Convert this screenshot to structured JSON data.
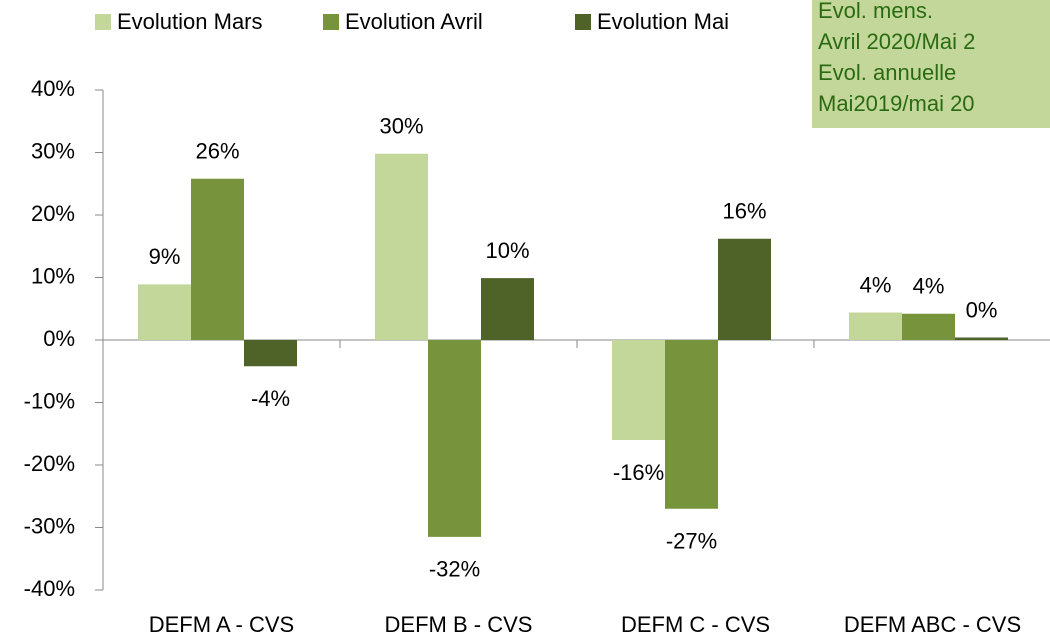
{
  "chart_data": {
    "type": "bar",
    "categories": [
      "DEFM A - CVS",
      "DEFM B - CVS",
      "DEFM C - CVS",
      "DEFM ABC - CVS"
    ],
    "series": [
      {
        "name": "Evolution Mars",
        "color": "#c4d79b",
        "values": [
          8.9,
          29.8,
          -16.0,
          4.4
        ],
        "value_labels": [
          "9%",
          "30%",
          "-16%",
          "4%"
        ]
      },
      {
        "name": "Evolution Avril",
        "color": "#77933c",
        "values": [
          25.8,
          -31.5,
          -27.0,
          4.2
        ],
        "value_labels": [
          "26%",
          "-32%",
          "-27%",
          "4%"
        ]
      },
      {
        "name": "Evolution Mai",
        "color": "#4f6228",
        "values": [
          -4.2,
          9.9,
          16.2,
          0.4
        ],
        "value_labels": [
          "-4%",
          "10%",
          "16%",
          "0%"
        ]
      }
    ],
    "ylim": [
      -40,
      40
    ],
    "yticks": [
      {
        "value": -40,
        "label": "-40%"
      },
      {
        "value": -30,
        "label": "-30%"
      },
      {
        "value": -20,
        "label": "-20%"
      },
      {
        "value": -10,
        "label": "-10%"
      },
      {
        "value": 0,
        "label": "0%"
      },
      {
        "value": 10,
        "label": "10%"
      },
      {
        "value": 20,
        "label": "20%"
      },
      {
        "value": 30,
        "label": "30%"
      },
      {
        "value": 40,
        "label": "40%"
      }
    ],
    "grid": false,
    "legend": "top",
    "annotations": [
      "Evol. mens.",
      "Avril 2020/Mai 2",
      "Evol. annuelle",
      "Mai2019/mai 20"
    ]
  }
}
